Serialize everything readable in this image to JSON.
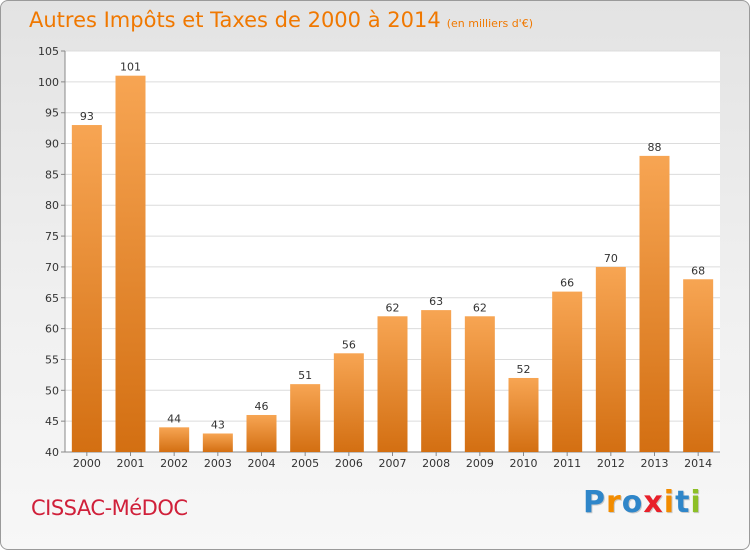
{
  "header": {
    "title": "Autres Impôts et Taxes de 2000 à 2014",
    "unit": "(en milliers d'€)"
  },
  "footer": {
    "commune": "CISSAC-MéDOC",
    "brand": {
      "letters": [
        "P",
        "r",
        "o",
        "x",
        "i",
        "t",
        "i"
      ],
      "colors": [
        "#2f86c9",
        "#f28c00",
        "#2f86c9",
        "#e8202a",
        "#f28c00",
        "#2f86c9",
        "#8cbf26"
      ]
    }
  },
  "chart_data": {
    "type": "bar",
    "categories": [
      "2000",
      "2001",
      "2002",
      "2003",
      "2004",
      "2005",
      "2006",
      "2007",
      "2008",
      "2009",
      "2010",
      "2011",
      "2012",
      "2013",
      "2014"
    ],
    "values": [
      93,
      101,
      44,
      43,
      46,
      51,
      56,
      62,
      63,
      62,
      52,
      66,
      70,
      88,
      68
    ],
    "ylim": [
      40,
      105
    ],
    "yticks": [
      40,
      45,
      50,
      55,
      60,
      65,
      70,
      75,
      80,
      85,
      90,
      95,
      100,
      105
    ],
    "grid": "horizontal",
    "colors": {
      "bar_light": "#f7a553",
      "bar_dark": "#d36f12",
      "grid": "#dcdcdc",
      "plot_bg": "#ffffff",
      "label": "#333333"
    }
  }
}
